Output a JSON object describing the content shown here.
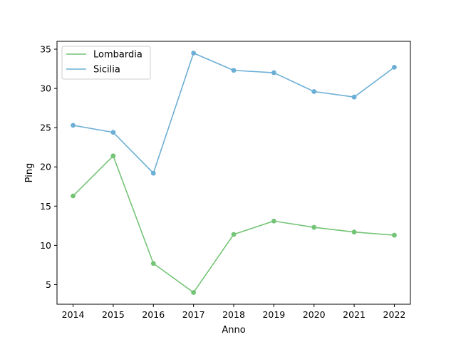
{
  "chart_data": {
    "type": "line",
    "title": "",
    "xlabel": "Anno",
    "ylabel": "Ping",
    "x": [
      2014,
      2015,
      2016,
      2017,
      2018,
      2019,
      2020,
      2021,
      2022
    ],
    "x_ticks": [
      "2014",
      "2015",
      "2016",
      "2017",
      "2018",
      "2019",
      "2020",
      "2021",
      "2022"
    ],
    "xlim": [
      2013.6,
      2022.4
    ],
    "y_ticks": [
      5,
      10,
      15,
      20,
      25,
      30,
      35
    ],
    "ylim": [
      2.5,
      36.0
    ],
    "grid": false,
    "legend_position": "top-left",
    "series": [
      {
        "name": "Lombardia",
        "color": "#74c476",
        "values": [
          16.3,
          21.4,
          7.7,
          4.0,
          11.4,
          13.1,
          12.3,
          11.7,
          11.3
        ]
      },
      {
        "name": "Sicilia",
        "color": "#6baed6",
        "values": [
          25.3,
          24.4,
          19.2,
          34.5,
          32.3,
          32.0,
          29.6,
          28.9,
          32.7
        ]
      }
    ]
  }
}
